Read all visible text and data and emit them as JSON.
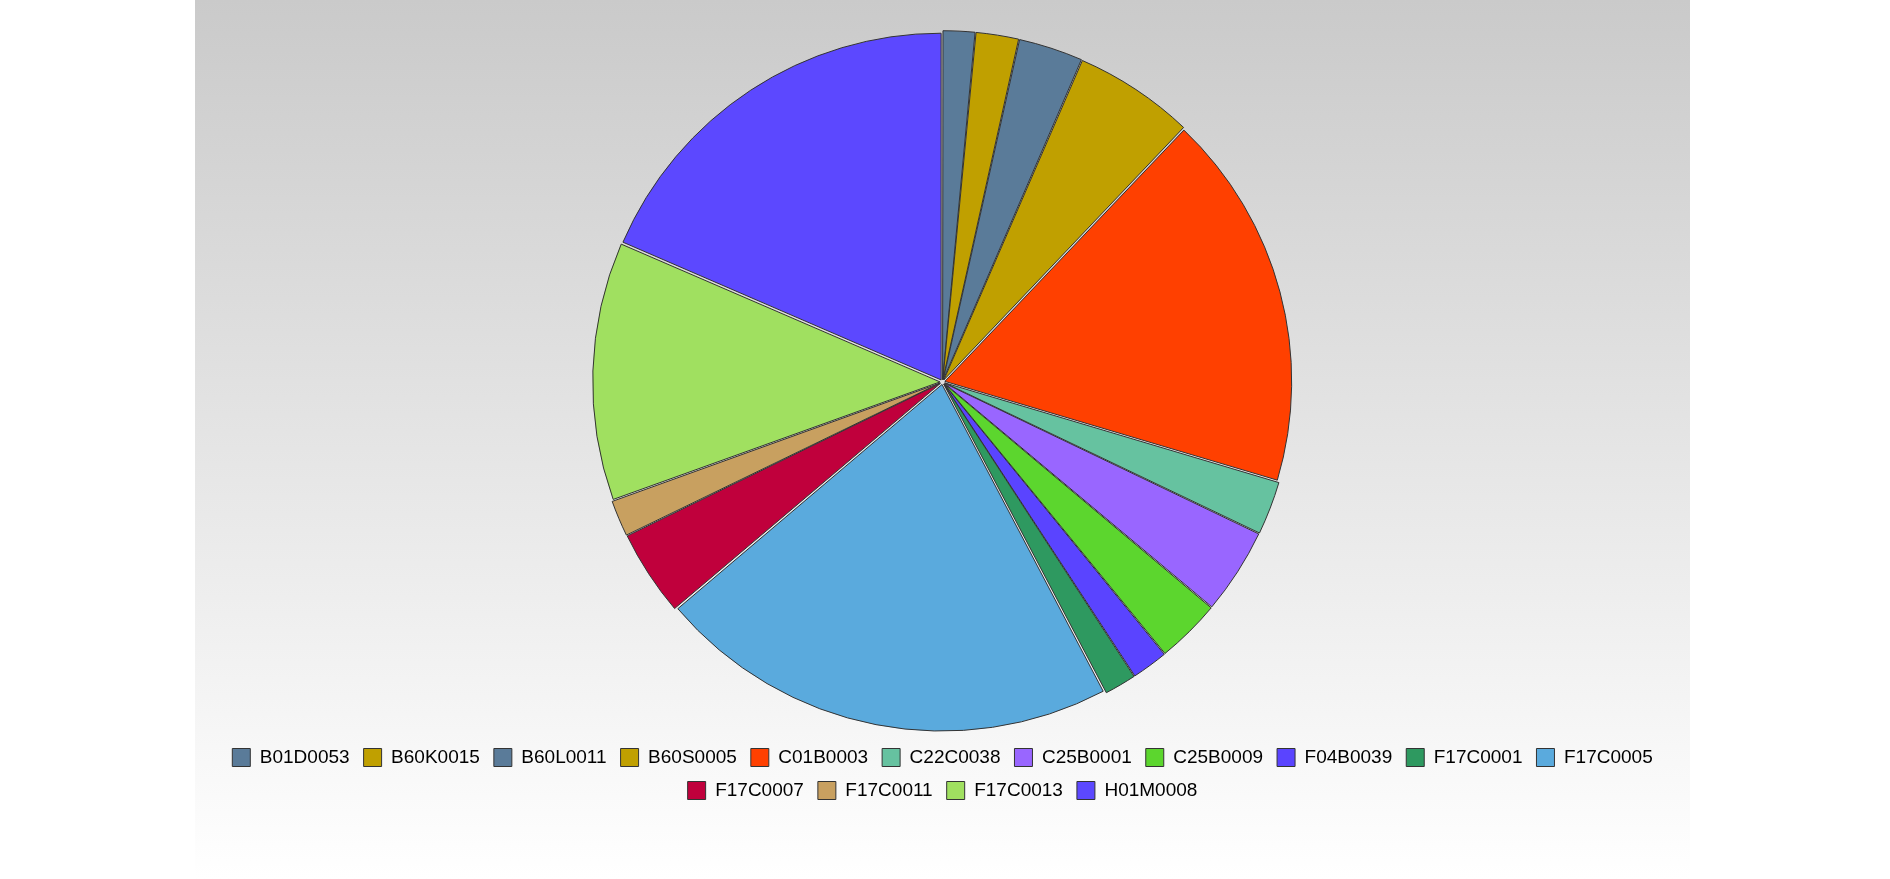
{
  "chart_data": {
    "type": "pie",
    "categories": [
      "B01D0053",
      "B60K0015",
      "B60L0011",
      "B60S0005",
      "C01B0003",
      "C22C0038",
      "C25B0001",
      "C25B0009",
      "F04B0039",
      "F17C0001",
      "F17C0005",
      "F17C0007",
      "F17C0011",
      "F17C0013",
      "H01M0008"
    ],
    "values": [
      1.5,
      2,
      3,
      5.6,
      17.5,
      2.5,
      4,
      3,
      1.7,
      1.5,
      21.5,
      4,
      1.7,
      12,
      18.5
    ],
    "colors": [
      "#5a7b99",
      "#c0a000",
      "#5a7b99",
      "#c0a000",
      "#ff4000",
      "#66c2a0",
      "#9966ff",
      "#5cd62e",
      "#5a44ff",
      "#2e9960",
      "#5aaadd",
      "#c0003c",
      "#c8a060",
      "#a0e060",
      "#5c48ff"
    ],
    "legend": "bottom"
  }
}
